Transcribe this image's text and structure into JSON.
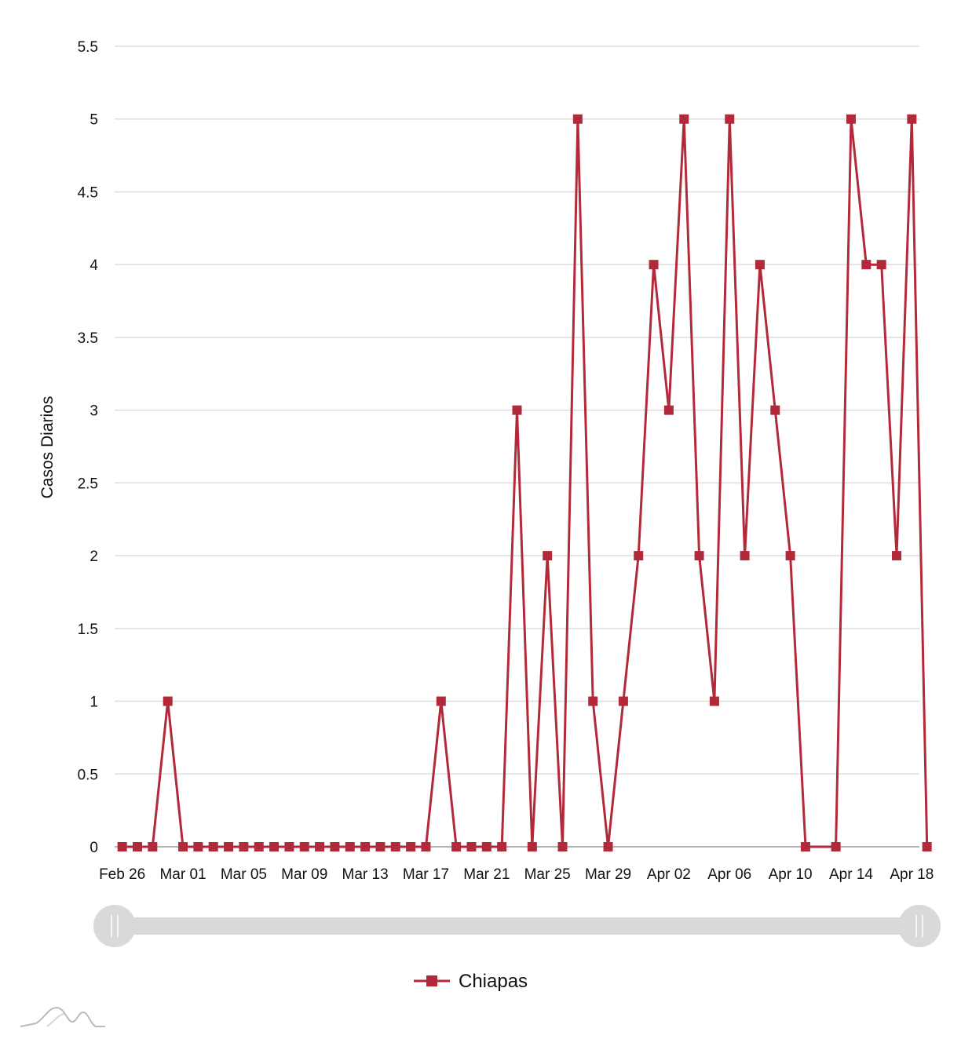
{
  "chart_data": {
    "type": "line",
    "title": "",
    "xlabel": "",
    "ylabel": "Casos Diarios",
    "ylim": [
      0,
      5.5
    ],
    "y_ticks": [
      "0",
      "0.5",
      "1",
      "1.5",
      "2",
      "2.5",
      "3",
      "3.5",
      "4",
      "4.5",
      "5",
      "5.5"
    ],
    "x_tick_labels": [
      "Feb 26",
      "Mar 01",
      "Mar 05",
      "Mar 09",
      "Mar 13",
      "Mar 17",
      "Mar 21",
      "Mar 25",
      "Mar 29",
      "Apr 02",
      "Apr 06",
      "Apr 10",
      "Apr 14",
      "Apr 18"
    ],
    "x_tick_day_index": [
      0,
      4,
      8,
      12,
      16,
      20,
      24,
      28,
      32,
      36,
      40,
      44,
      48,
      52
    ],
    "x_start_date": "Feb 26",
    "x_day_span": [
      -0.5,
      52.5
    ],
    "grid": true,
    "legend_position": "bottom-center",
    "series": [
      {
        "name": "Chiapas",
        "color": "#b22a3a",
        "marker": "square",
        "points": [
          {
            "day": 0,
            "value": 0
          },
          {
            "day": 1,
            "value": 0
          },
          {
            "day": 2,
            "value": 0
          },
          {
            "day": 3,
            "value": 1
          },
          {
            "day": 4,
            "value": 0
          },
          {
            "day": 5,
            "value": 0
          },
          {
            "day": 6,
            "value": 0
          },
          {
            "day": 7,
            "value": 0
          },
          {
            "day": 8,
            "value": 0
          },
          {
            "day": 9,
            "value": 0
          },
          {
            "day": 10,
            "value": 0
          },
          {
            "day": 11,
            "value": 0
          },
          {
            "day": 12,
            "value": 0
          },
          {
            "day": 13,
            "value": 0
          },
          {
            "day": 14,
            "value": 0
          },
          {
            "day": 15,
            "value": 0
          },
          {
            "day": 16,
            "value": 0
          },
          {
            "day": 17,
            "value": 0
          },
          {
            "day": 18,
            "value": 0
          },
          {
            "day": 19,
            "value": 0
          },
          {
            "day": 20,
            "value": 0
          },
          {
            "day": 21,
            "value": 1
          },
          {
            "day": 22,
            "value": 0
          },
          {
            "day": 23,
            "value": 0
          },
          {
            "day": 24,
            "value": 0
          },
          {
            "day": 25,
            "value": 0
          },
          {
            "day": 26,
            "value": 3
          },
          {
            "day": 27,
            "value": 0
          },
          {
            "day": 28,
            "value": 2
          },
          {
            "day": 29,
            "value": 0
          },
          {
            "day": 30,
            "value": 5
          },
          {
            "day": 31,
            "value": 1
          },
          {
            "day": 32,
            "value": 0
          },
          {
            "day": 33,
            "value": 1
          },
          {
            "day": 34,
            "value": 2
          },
          {
            "day": 35,
            "value": 4
          },
          {
            "day": 36,
            "value": 3
          },
          {
            "day": 37,
            "value": 5
          },
          {
            "day": 38,
            "value": 2
          },
          {
            "day": 39,
            "value": 1
          },
          {
            "day": 40,
            "value": 5
          },
          {
            "day": 41,
            "value": 2
          },
          {
            "day": 42,
            "value": 4
          },
          {
            "day": 43,
            "value": 3
          },
          {
            "day": 44,
            "value": 2
          },
          {
            "day": 45,
            "value": 0
          },
          {
            "day": 47,
            "value": 0
          },
          {
            "day": 48,
            "value": 5
          },
          {
            "day": 49,
            "value": 4
          },
          {
            "day": 50,
            "value": 4
          },
          {
            "day": 51,
            "value": 2
          },
          {
            "day": 52,
            "value": 5
          },
          {
            "day": 53,
            "value": 0
          }
        ]
      }
    ],
    "scrollbar": {
      "range_start": 0,
      "range_end": 1
    },
    "colors": {
      "grid": "#dddddd",
      "scrollbar_track": "#d9d9d9",
      "scrollbar_grip": "#d9d9d9",
      "logo": "#bbbbbb"
    }
  }
}
